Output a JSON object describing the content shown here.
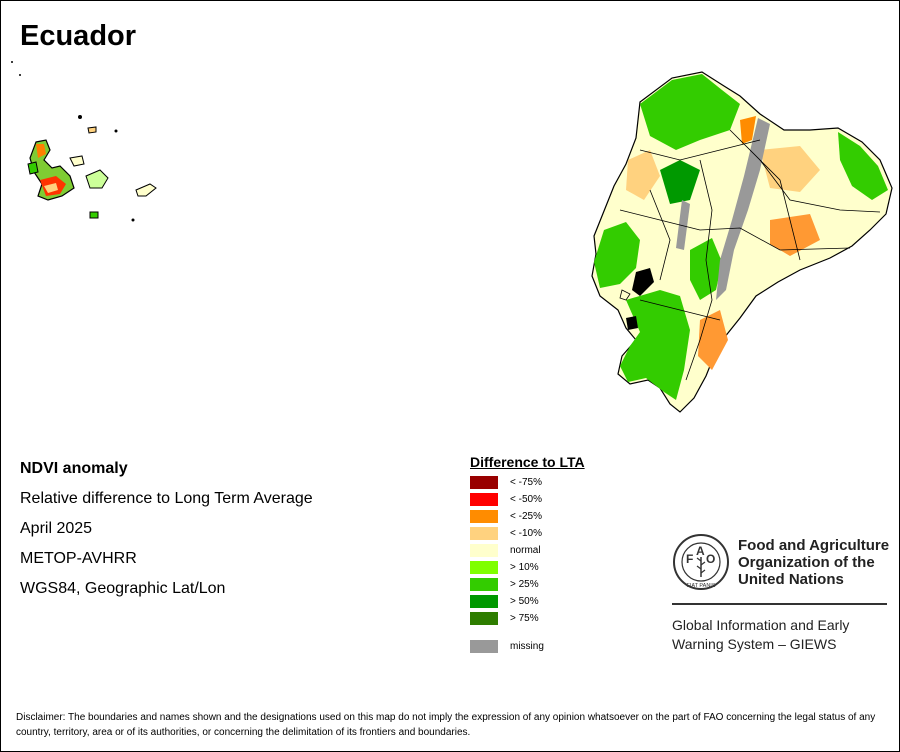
{
  "map": {
    "title": "Ecuador"
  },
  "info": {
    "product": "NDVI anomaly",
    "description": "Relative difference to Long Term Average",
    "period": "April 2025",
    "sensor": "METOP-AVHRR",
    "projection": "WGS84, Geographic Lat/Lon"
  },
  "legend": {
    "title": "Difference to LTA",
    "items": [
      {
        "label": "< -75%",
        "color": "#990000"
      },
      {
        "label": "< -50%",
        "color": "#ff0000"
      },
      {
        "label": "< -25%",
        "color": "#ff8c00"
      },
      {
        "label": "< -10%",
        "color": "#ffd27f"
      },
      {
        "label": "normal",
        "color": "#ffffcc"
      },
      {
        "label": "> 10%",
        "color": "#7fff00"
      },
      {
        "label": "> 25%",
        "color": "#33cc00"
      },
      {
        "label": "> 50%",
        "color": "#009900"
      },
      {
        "label": "> 75%",
        "color": "#2e7d00"
      }
    ],
    "missing": {
      "label": "missing",
      "color": "#999999"
    }
  },
  "logo": {
    "org_line1": "Food and Agriculture",
    "org_line2": "Organization of the",
    "org_line3": "United Nations",
    "emblem_text": "FIAT PANIS",
    "giews_line1": "Global Information and Early",
    "giews_line2": "Warning System – GIEWS"
  },
  "disclaimer": "Disclaimer: The boundaries and names shown and the designations used on this map do not imply the expression of any opinion whatsoever on the part of FAO concerning the legal status of any country, territory, area or of its authorities, or concerning the delimitation of its frontiers and boundaries."
}
